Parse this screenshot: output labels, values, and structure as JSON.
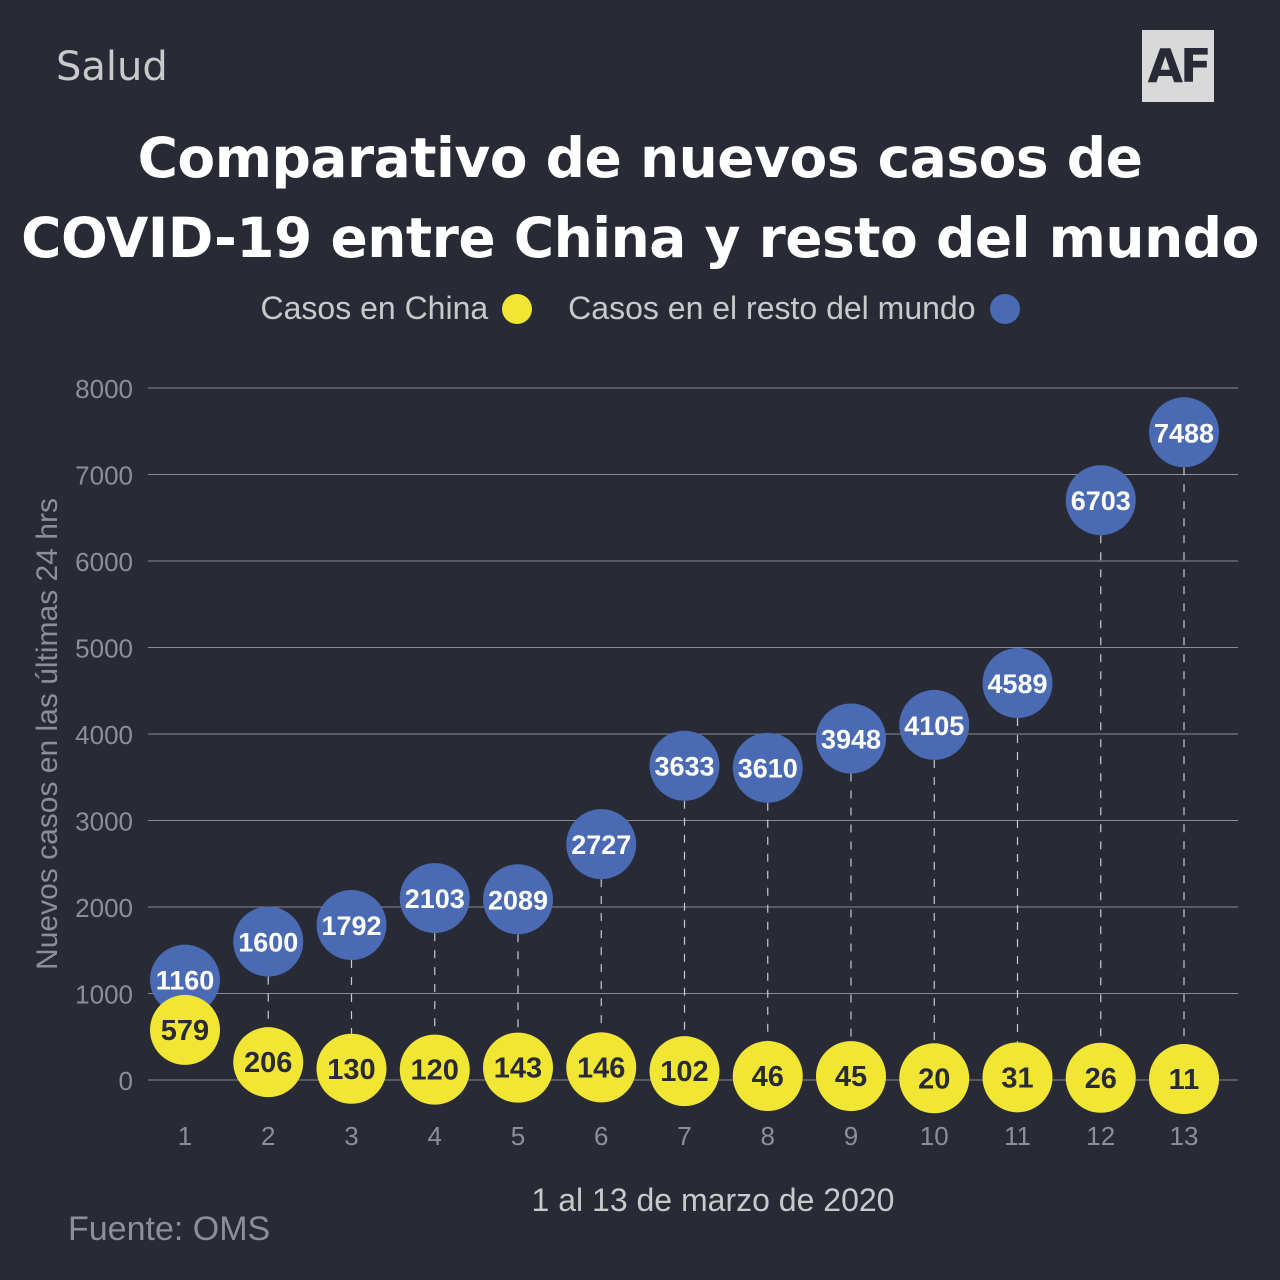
{
  "header": {
    "section": "Salud",
    "logo": "AF",
    "title_line1": "Comparativo de nuevos casos de",
    "title_line2": "COVID-19 entre China y resto del mundo"
  },
  "footer": {
    "source": "Fuente: OMS"
  },
  "colors": {
    "china": "#f2e634",
    "world": "#4a6bb4",
    "background": "#282a35"
  },
  "chart_data": {
    "type": "scatter",
    "title": "Comparativo de nuevos casos de COVID-19 entre China y resto del mundo",
    "xlabel": "1 al 13 de marzo de 2020",
    "ylabel": "Nuevos casos en las últimas 24 hrs",
    "x": [
      1,
      2,
      3,
      4,
      5,
      6,
      7,
      8,
      9,
      10,
      11,
      12,
      13
    ],
    "yticks": [
      0,
      1000,
      2000,
      3000,
      4000,
      5000,
      6000,
      7000,
      8000
    ],
    "ylim": [
      0,
      8000
    ],
    "grid": true,
    "legend_position": "top-center",
    "series": [
      {
        "name": "Casos en China",
        "color": "#f2e634",
        "values": [
          579,
          206,
          130,
          120,
          143,
          146,
          102,
          46,
          45,
          20,
          31,
          26,
          11
        ]
      },
      {
        "name": "Casos en el resto del mundo",
        "color": "#4a6bb4",
        "values": [
          1160,
          1600,
          1792,
          2103,
          2089,
          2727,
          3633,
          3610,
          3948,
          4105,
          4589,
          6703,
          7488
        ]
      }
    ]
  }
}
